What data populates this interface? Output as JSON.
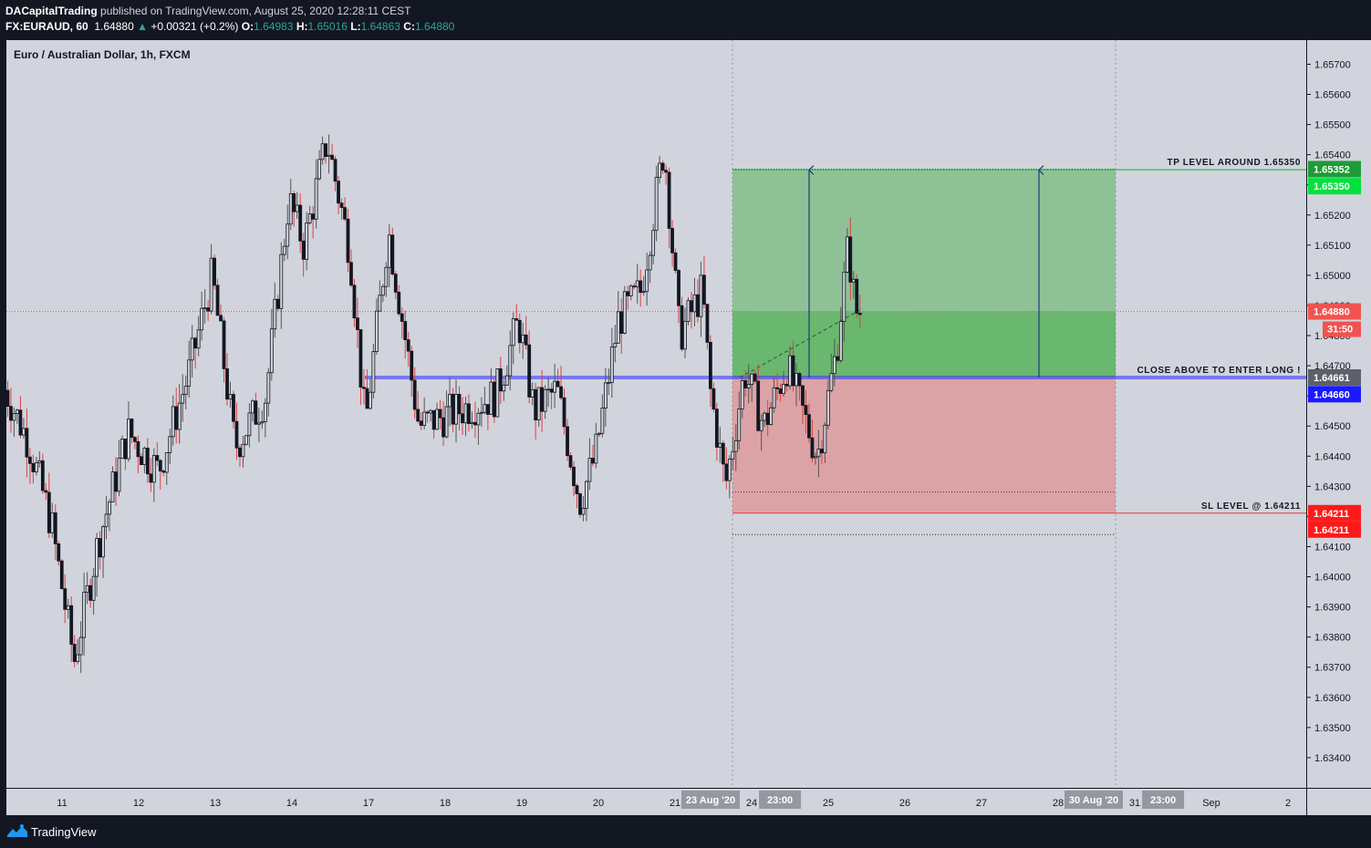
{
  "header": {
    "author": "DACapitalTrading",
    "published_text": "published on TradingView.com, August 25, 2020 12:28:11 CEST",
    "symbol": "FX:EURAUD, 60",
    "last": "1.64880",
    "change": "+0.00321 (+0.2%)",
    "o_label": "O:",
    "o_value": "1.64983",
    "h_label": "H:",
    "h_value": "1.65016",
    "l_label": "L:",
    "l_value": "1.64863",
    "c_label": "C:",
    "c_value": "1.64880"
  },
  "chart_title": "Euro / Australian Dollar, 1h, FXCM",
  "footer": {
    "brand": "TradingView"
  },
  "chart_data": {
    "type": "candlestick",
    "title": "Euro / Australian Dollar, 1h, FXCM",
    "ylim": [
      1.633,
      1.6578
    ],
    "y_ticks": [
      "1.65700",
      "1.65600",
      "1.65500",
      "1.65400",
      "1.65300",
      "1.65200",
      "1.65100",
      "1.65000",
      "1.64900",
      "1.64800",
      "1.64700",
      "1.64600",
      "1.64500",
      "1.64400",
      "1.64300",
      "1.64200",
      "1.64100",
      "1.64000",
      "1.63900",
      "1.63800",
      "1.63700",
      "1.63600",
      "1.63500",
      "1.63400"
    ],
    "x_ticks": [
      "11",
      "12",
      "13",
      "14",
      "17",
      "18",
      "19",
      "20",
      "21",
      "24",
      "25",
      "26",
      "27",
      "28",
      "31",
      "Sep",
      "2"
    ],
    "x_tick_days": [
      0,
      1,
      2,
      3,
      4,
      5,
      6,
      7,
      8,
      9,
      10,
      11,
      12,
      13,
      14,
      15,
      16
    ],
    "time_labels": [
      {
        "text": "23 Aug '20",
        "day": 8.75
      },
      {
        "text": "23:00",
        "day": 9.37
      },
      {
        "text": "30 Aug '20",
        "day": 13.75
      },
      {
        "text": "23:00",
        "day": 14.37
      }
    ],
    "current_price": 1.6488,
    "countdown": "31:50",
    "entry_level": 1.64661,
    "entry_label": "CLOSE ABOVE TO ENTER LONG !",
    "tp_level": 1.6535,
    "tp_label": "TP LEVEL AROUND 1.65350",
    "sl_level": 1.64211,
    "sl_label": "SL LEVEL @ 1.64211",
    "position": {
      "start_day": 8.75,
      "end_day": 13.75,
      "entry": 1.64661,
      "target": 1.65352,
      "stop": 1.64211
    },
    "price_labels": [
      {
        "text": "1.65352",
        "price": 1.65352,
        "color": "#1e9b37"
      },
      {
        "text": "1.65350",
        "price": 1.6535,
        "color": "#00e23c"
      },
      {
        "text": "1.64880",
        "price": 1.6488,
        "color": "#f05350"
      },
      {
        "text": "1.64661",
        "price": 1.64661,
        "color": "#5d606b"
      },
      {
        "text": "1.64660",
        "price": 1.6466,
        "color": "#1a1aff"
      },
      {
        "text": "1.64211",
        "price": 1.64211,
        "color": "#ff1a1a"
      },
      {
        "text": "1.64211",
        "price": 1.64211,
        "color": "#ff1a1a"
      }
    ],
    "anchors": [
      {
        "day": -0.7,
        "price": 1.6462
      },
      {
        "day": -0.4,
        "price": 1.6445
      },
      {
        "day": -0.1,
        "price": 1.6418
      },
      {
        "day": 0.2,
        "price": 1.6372
      },
      {
        "day": 0.5,
        "price": 1.641
      },
      {
        "day": 0.9,
        "price": 1.6448
      },
      {
        "day": 1.3,
        "price": 1.6435
      },
      {
        "day": 1.7,
        "price": 1.6468
      },
      {
        "day": 2.0,
        "price": 1.65
      },
      {
        "day": 2.3,
        "price": 1.6443
      },
      {
        "day": 2.7,
        "price": 1.646
      },
      {
        "day": 3.0,
        "price": 1.6525
      },
      {
        "day": 3.2,
        "price": 1.651
      },
      {
        "day": 3.5,
        "price": 1.6545
      },
      {
        "day": 3.8,
        "price": 1.6508
      },
      {
        "day": 4.0,
        "price": 1.645
      },
      {
        "day": 4.3,
        "price": 1.6515
      },
      {
        "day": 4.7,
        "price": 1.645
      },
      {
        "day": 5.2,
        "price": 1.6455
      },
      {
        "day": 5.7,
        "price": 1.646
      },
      {
        "day": 6.0,
        "price": 1.6485
      },
      {
        "day": 6.2,
        "price": 1.6455
      },
      {
        "day": 6.5,
        "price": 1.6462
      },
      {
        "day": 6.8,
        "price": 1.6425
      },
      {
        "day": 7.0,
        "price": 1.644
      },
      {
        "day": 7.3,
        "price": 1.6485
      },
      {
        "day": 7.6,
        "price": 1.6495
      },
      {
        "day": 7.9,
        "price": 1.6543
      },
      {
        "day": 8.1,
        "price": 1.648
      },
      {
        "day": 8.4,
        "price": 1.6495
      },
      {
        "day": 8.5,
        "price": 1.6462
      },
      {
        "day": 8.7,
        "price": 1.643
      },
      {
        "day": 8.95,
        "price": 1.6468
      },
      {
        "day": 9.2,
        "price": 1.645
      },
      {
        "day": 9.5,
        "price": 1.647
      },
      {
        "day": 9.9,
        "price": 1.644
      },
      {
        "day": 10.15,
        "price": 1.6475
      },
      {
        "day": 10.3,
        "price": 1.651
      },
      {
        "day": 10.4,
        "price": 1.6488
      }
    ]
  }
}
